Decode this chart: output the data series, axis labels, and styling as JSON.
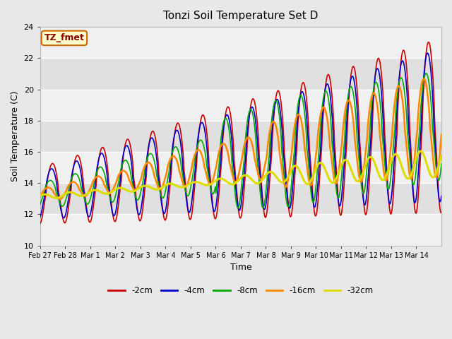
{
  "title": "Tonzi Soil Temperature Set D",
  "xlabel": "Time",
  "ylabel": "Soil Temperature (C)",
  "ylim": [
    10,
    24
  ],
  "yticks": [
    10,
    12,
    14,
    16,
    18,
    20,
    22,
    24
  ],
  "plot_bg_color": "#e8e8e8",
  "alt_band_color": "#d8d8d8",
  "series": [
    {
      "label": "-2cm",
      "color": "#cc0000",
      "lw": 1.2
    },
    {
      "label": "-4cm",
      "color": "#0000cc",
      "lw": 1.2
    },
    {
      "label": "-8cm",
      "color": "#00aa00",
      "lw": 1.2
    },
    {
      "label": "-16cm",
      "color": "#ff8800",
      "lw": 1.8
    },
    {
      "label": "-32cm",
      "color": "#dddd00",
      "lw": 2.2
    }
  ],
  "annotation": {
    "text": "TZ_fmet",
    "fontsize": 9,
    "color": "#880000",
    "bg": "#ffffcc",
    "border": "#cc6600"
  },
  "xtick_labels": [
    "Feb 27",
    "Feb 28",
    "Mar 1",
    "Mar 2",
    "Mar 3",
    "Mar 4",
    "Mar 5",
    "Mar 6",
    "Mar 7",
    "Mar 8",
    "Mar 9",
    "Mar 10",
    "Mar 11",
    "Mar 12",
    "Mar 13",
    "Mar 14"
  ],
  "n_days": 16,
  "points_per_day": 48
}
